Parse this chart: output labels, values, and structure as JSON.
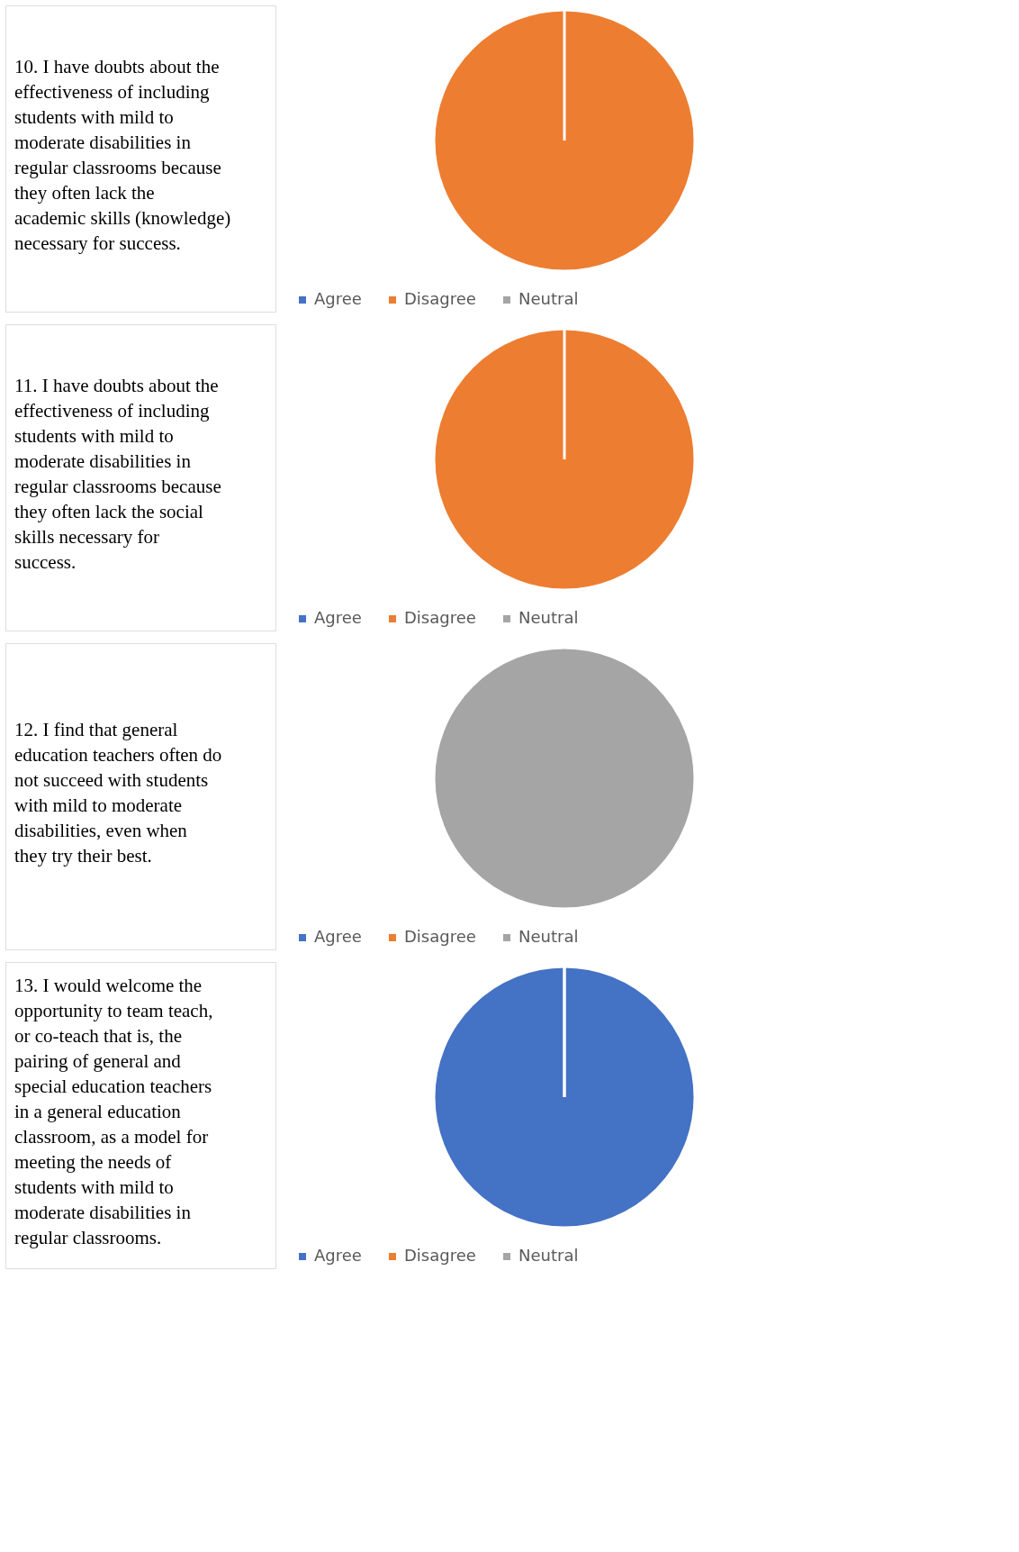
{
  "chart_data": [
    {
      "type": "pie",
      "title": "10. I have doubts about the effectiveness of including students with mild to moderate disabilities in regular classrooms because they often lack the academic skills (knowledge) necessary for success.",
      "categories": [
        "Agree",
        "Disagree",
        "Neutral"
      ],
      "values": [
        0,
        100,
        0
      ],
      "colors": [
        "#4472c4",
        "#ed7d31",
        "#a5a5a5"
      ],
      "legend": "bottom"
    },
    {
      "type": "pie",
      "title": "11. I have doubts about the effectiveness of including students with mild to moderate disabilities in regular classrooms because they often lack the social skills necessary for success.",
      "categories": [
        "Agree",
        "Disagree",
        "Neutral"
      ],
      "values": [
        0,
        100,
        0
      ],
      "colors": [
        "#4472c4",
        "#ed7d31",
        "#a5a5a5"
      ],
      "legend": "bottom"
    },
    {
      "type": "pie",
      "title": "12. I find that general education teachers often do not succeed with students with mild to moderate disabilities, even when they try their best.",
      "categories": [
        "Agree",
        "Disagree",
        "Neutral"
      ],
      "values": [
        0,
        0,
        100
      ],
      "colors": [
        "#4472c4",
        "#ed7d31",
        "#a5a5a5"
      ],
      "legend": "bottom"
    },
    {
      "type": "pie",
      "title": "13. I would welcome the opportunity to team teach, or co-teach that is, the pairing of general and special education teachers in a general education classroom, as a model for meeting the needs of students with mild to moderate disabilities in regular classrooms.",
      "categories": [
        "Agree",
        "Disagree",
        "Neutral"
      ],
      "values": [
        100,
        0,
        0
      ],
      "colors": [
        "#4472c4",
        "#ed7d31",
        "#a5a5a5"
      ],
      "legend": "bottom"
    }
  ]
}
